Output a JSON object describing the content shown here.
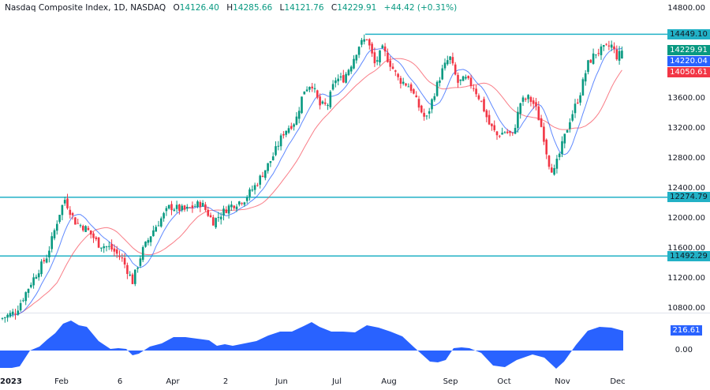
{
  "header": {
    "symbol_title": "Nasdaq Composite Index, 1D, NASDAQ",
    "open_label": "O",
    "open_value": "14126.40",
    "high_label": "H",
    "high_value": "14285.66",
    "low_label": "L",
    "low_value": "14121.76",
    "close_label": "C",
    "close_value": "14229.91",
    "change": "+44.42 (+0.31%)"
  },
  "colors": {
    "up": "#089981",
    "down": "#f23645",
    "ma_fast": "#2962ff",
    "ma_slow": "#f7525f",
    "level_line": "#22b1c6",
    "oscillator": "#2962ff",
    "axis_text": "#131722"
  },
  "price_axis": {
    "ticks": [
      "14800.00",
      "13600.00",
      "13200.00",
      "12800.00",
      "12400.00",
      "12000.00",
      "11600.00",
      "11200.00",
      "10800.00"
    ],
    "tags": {
      "resistance": "14449.10",
      "last_close": "14229.91",
      "ma_fast": "14220.04",
      "ma_slow": "14050.61",
      "support_1": "12274.79",
      "support_2": "11492.29"
    }
  },
  "oscillator_axis": {
    "value_tag": "216.61",
    "zero_label": "0.00"
  },
  "time_axis": {
    "labels": [
      "2023",
      "Feb",
      "6",
      "Apr",
      "2",
      "Jun",
      "Jul",
      "Aug",
      "Sep",
      "Oct",
      "Nov",
      "Dec"
    ]
  },
  "chart_data": {
    "type": "candlestick",
    "title": "Nasdaq Composite Index, 1D, NASDAQ",
    "timeframe": "1D",
    "last_bar": {
      "open": 14126.4,
      "high": 14285.66,
      "low": 14121.76,
      "close": 14229.91,
      "change": 44.42,
      "change_pct": 0.31
    },
    "ylim": [
      10800,
      14800
    ],
    "y_ticks": [
      10800,
      11200,
      11600,
      12000,
      12400,
      12800,
      13200,
      13600,
      14800
    ],
    "x_ticks": [
      "2023",
      "Feb",
      "6",
      "Apr",
      "2",
      "Jun",
      "Jul",
      "Aug",
      "Sep",
      "Oct",
      "Nov",
      "Dec"
    ],
    "horizontal_levels": [
      14449.1,
      12274.79,
      11492.29
    ],
    "moving_averages": [
      {
        "name": "fast MA",
        "color": "#2962ff",
        "last": 14220.04
      },
      {
        "name": "slow MA",
        "color": "#f7525f",
        "last": 14050.61
      }
    ],
    "approx_close_path": [
      {
        "x": "2023-01",
        "close": 10700
      },
      {
        "x": "2023-02",
        "close": 12200
      },
      {
        "x": "2023-03 (6)",
        "close": 11400
      },
      {
        "x": "2023-03 mid",
        "close": 11100
      },
      {
        "x": "2023-04",
        "close": 12150
      },
      {
        "x": "2023-05 (2)",
        "close": 12050
      },
      {
        "x": "2023-06",
        "close": 13250
      },
      {
        "x": "2023-07",
        "close": 13900
      },
      {
        "x": "2023-07 mid",
        "close": 14400
      },
      {
        "x": "2023-08",
        "close": 14050
      },
      {
        "x": "2023-08 mid",
        "close": 13300
      },
      {
        "x": "2023-09",
        "close": 14050
      },
      {
        "x": "2023-10",
        "close": 13100
      },
      {
        "x": "2023-10 mid",
        "close": 13600
      },
      {
        "x": "2023-10 end",
        "close": 12600
      },
      {
        "x": "2023-11",
        "close": 13600
      },
      {
        "x": "2023-11 end",
        "close": 14300
      },
      {
        "x": "2023-12",
        "close": 14229.91
      }
    ],
    "oscillator": {
      "type": "area",
      "last": 216.61,
      "zero_line": 0.0
    }
  }
}
